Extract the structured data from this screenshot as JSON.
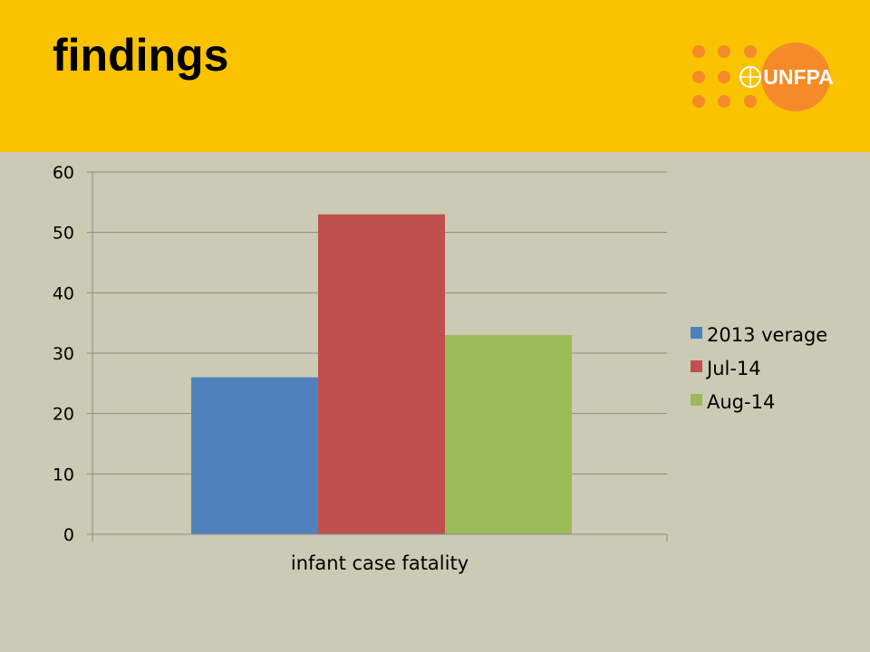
{
  "slide": {
    "title": "findings",
    "logo_text": "UNFPA"
  },
  "colors": {
    "header": "#f9c300",
    "background": "#cbcab4",
    "logo_orange": "#f58b28"
  },
  "chart_data": {
    "type": "bar",
    "categories": [
      "infant case fatality"
    ],
    "series": [
      {
        "name": "2013 verage",
        "values": [
          26
        ],
        "color": "#4f81bd"
      },
      {
        "name": "Jul-14",
        "values": [
          53
        ],
        "color": "#c0504d"
      },
      {
        "name": "Aug-14",
        "values": [
          33
        ],
        "color": "#9bbb59"
      }
    ],
    "ylim": [
      0,
      60
    ],
    "yticks": [
      0,
      10,
      20,
      30,
      40,
      50,
      60
    ],
    "grid": true,
    "legend": "right",
    "title": "",
    "xlabel": "",
    "ylabel": ""
  }
}
